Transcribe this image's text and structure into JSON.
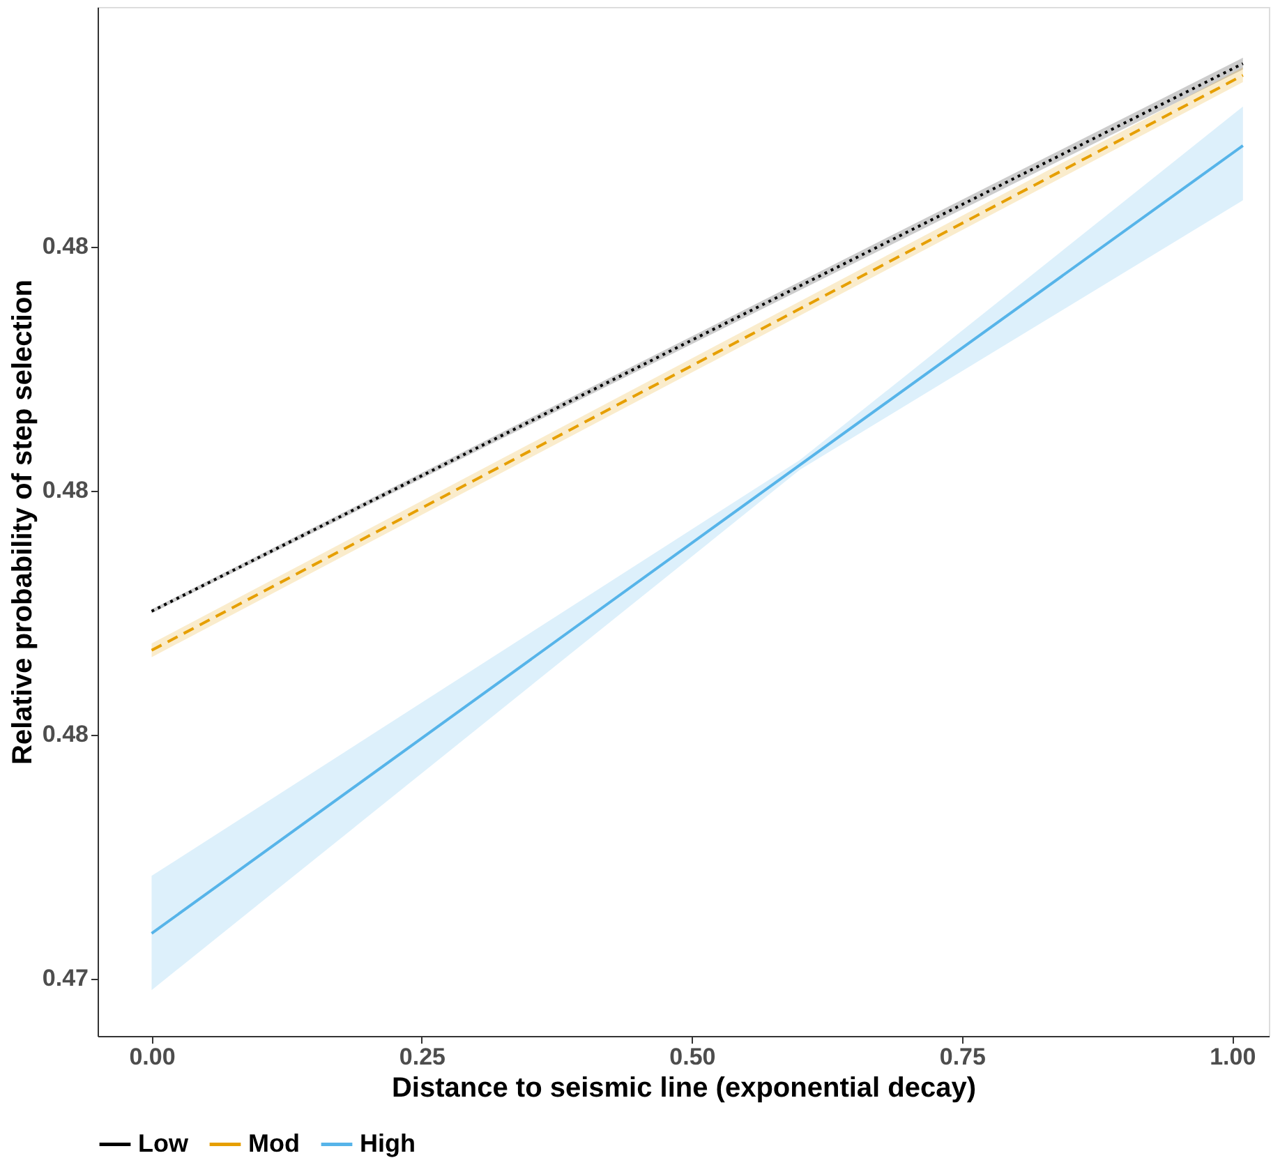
{
  "chart_data": {
    "type": "line",
    "xlabel": "Distance to seismic line (exponential decay)",
    "ylabel": "Relative probability of step selection",
    "xlim": [
      -0.05,
      1.034
    ],
    "ylim": [
      0.47191,
      0.48245
    ],
    "xticks": [
      {
        "value": 0,
        "label": "0.00"
      },
      {
        "value": 0.25,
        "label": "0.25"
      },
      {
        "value": 0.5,
        "label": "0.50"
      },
      {
        "value": 0.75,
        "label": "0.75"
      },
      {
        "value": 1,
        "label": "1.00"
      }
    ],
    "yticks": [
      {
        "value": 0.4725,
        "label": "0.47"
      },
      {
        "value": 0.475,
        "label": "0.48"
      },
      {
        "value": 0.4775,
        "label": "0.48"
      },
      {
        "value": 0.48,
        "label": "0.48"
      }
    ],
    "grid": false,
    "legend": "bottom",
    "marker": "none",
    "series": [
      {
        "name": "Low",
        "color": "#000000",
        "line_style": "dotted",
        "x": [
          0,
          1.01
        ],
        "values": [
          0.47626,
          0.48187
        ],
        "lower": [
          0.47624,
          0.48181
        ],
        "upper": [
          0.47628,
          0.48193
        ]
      },
      {
        "name": "Mod",
        "color": "#e69f00",
        "line_style": "dashed",
        "x": [
          0,
          1.01
        ],
        "values": [
          0.47586,
          0.48175
        ],
        "lower": [
          0.47579,
          0.48168
        ],
        "upper": [
          0.47593,
          0.48183
        ]
      },
      {
        "name": "High",
        "color": "#56b4e9",
        "line_style": "solid",
        "x": [
          0,
          0.6,
          1.01
        ],
        "values": [
          0.47296,
          0.47776,
          0.48103
        ],
        "lower": [
          0.47238,
          0.47771,
          0.48047
        ],
        "upper": [
          0.47355,
          0.47781,
          0.48143
        ]
      }
    ]
  }
}
